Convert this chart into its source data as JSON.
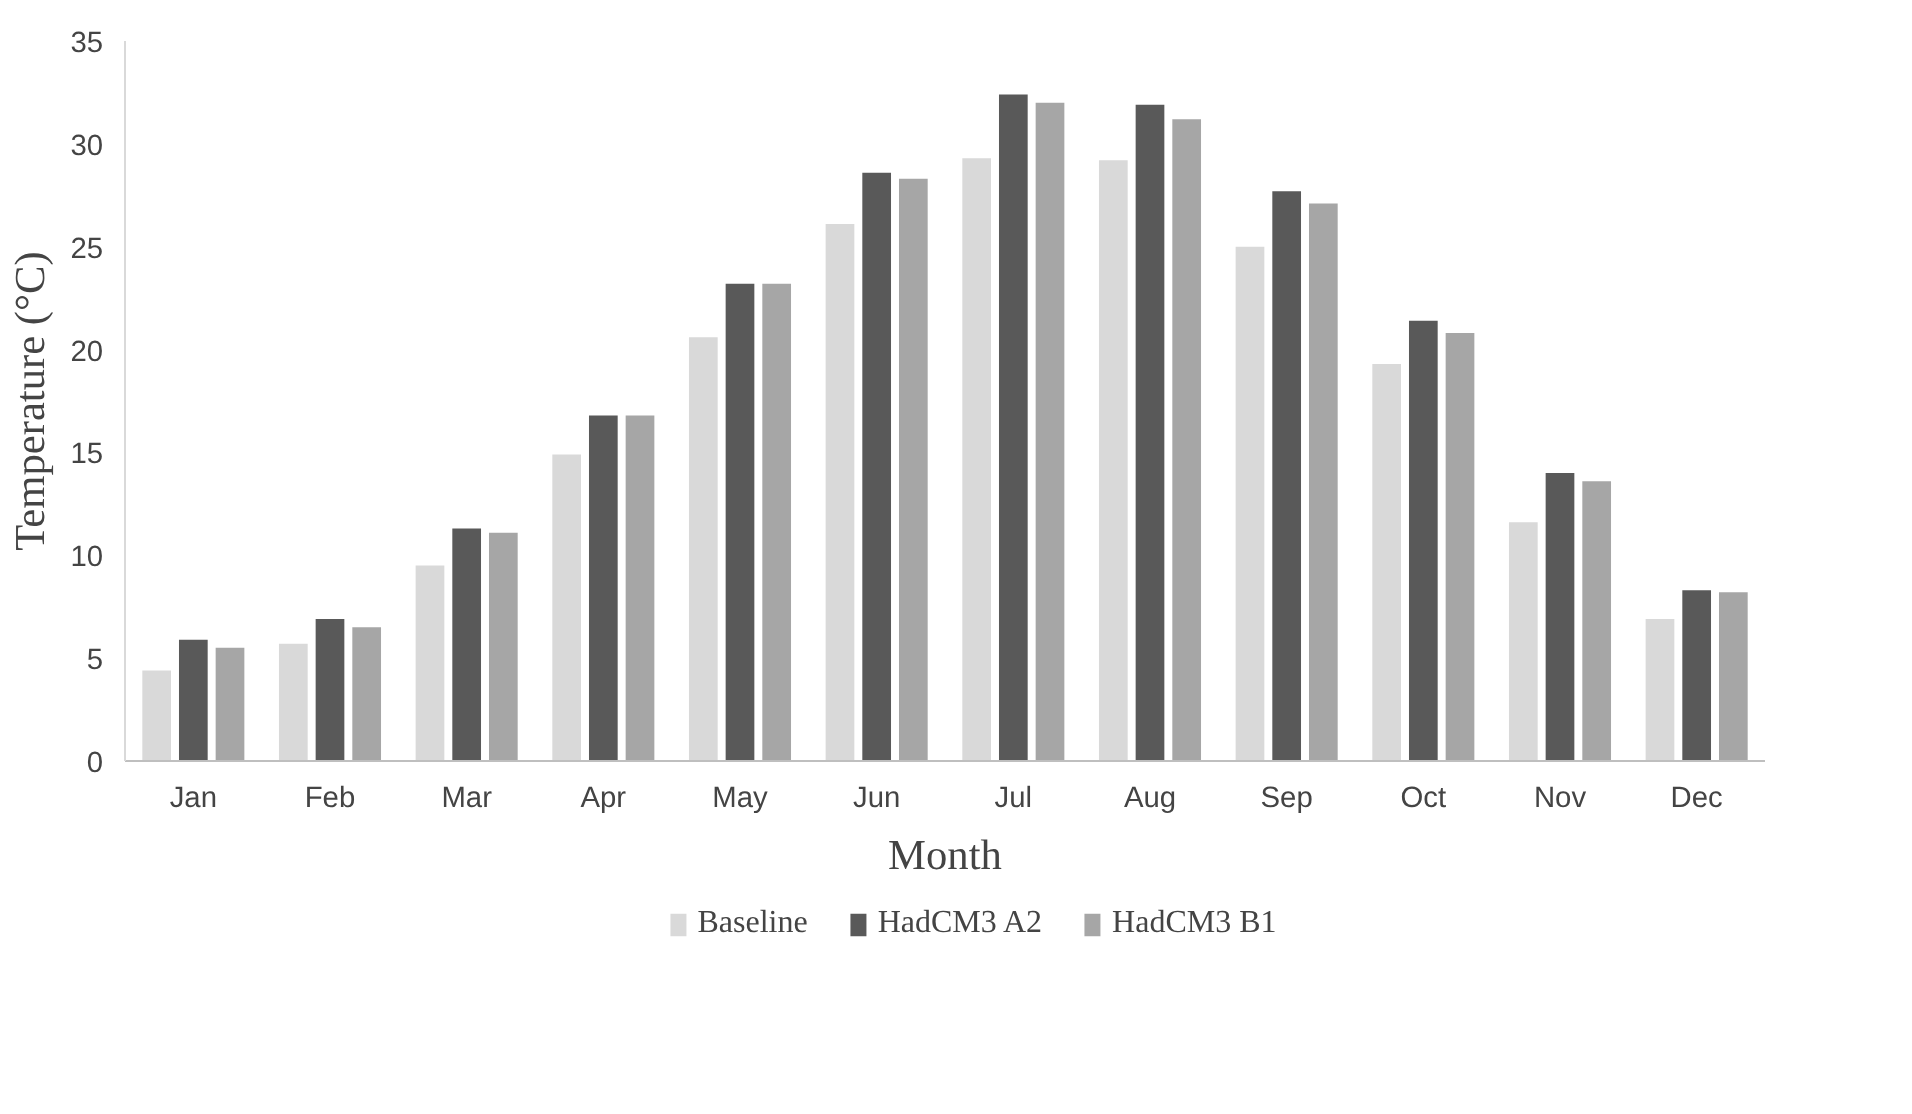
{
  "chart_data": {
    "type": "bar",
    "xlabel": "Month",
    "ylabel": "Temperature (°C)",
    "categories": [
      "Jan",
      "Feb",
      "Mar",
      "Apr",
      "May",
      "Jun",
      "Jul",
      "Aug",
      "Sep",
      "Oct",
      "Nov",
      "Dec"
    ],
    "series": [
      {
        "name": "Baseline",
        "color": "#d9d9d9",
        "values": [
          4.4,
          5.7,
          9.5,
          14.9,
          20.6,
          26.1,
          29.3,
          29.2,
          25.0,
          19.3,
          11.6,
          6.9
        ]
      },
      {
        "name": "HadCM3 A2",
        "color": "#595959",
        "values": [
          5.9,
          6.9,
          11.3,
          16.8,
          23.2,
          28.6,
          32.4,
          31.9,
          27.7,
          21.4,
          14.0,
          8.3
        ]
      },
      {
        "name": "HadCM3 B1",
        "color": "#a6a6a6",
        "values": [
          5.5,
          6.5,
          11.1,
          16.8,
          23.2,
          28.3,
          32.0,
          31.2,
          27.1,
          20.8,
          13.6,
          8.2
        ]
      }
    ],
    "ylim": [
      0,
      35
    ],
    "yticks": [
      0,
      5,
      10,
      15,
      20,
      25,
      30,
      35
    ],
    "grid": false,
    "legend": "bottom"
  }
}
